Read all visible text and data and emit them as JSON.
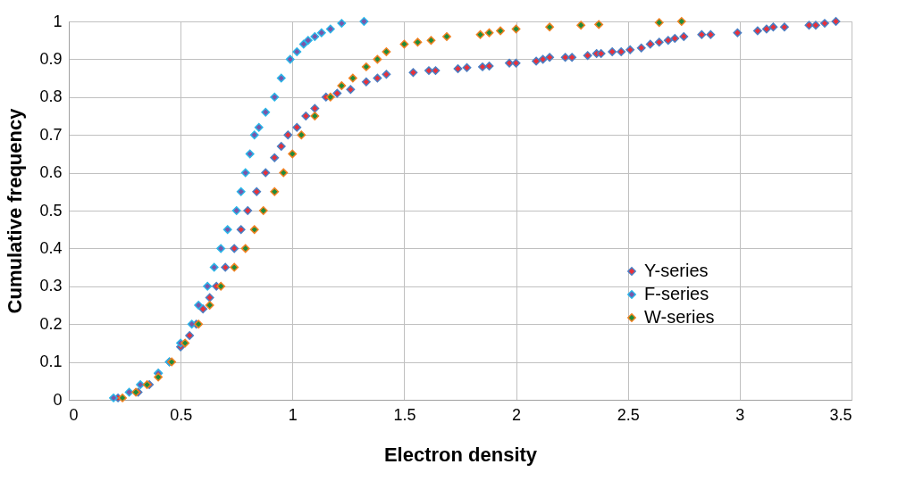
{
  "chart_data": {
    "type": "scatter",
    "xlabel": "Electron density",
    "ylabel": "Cumulative frequency",
    "xlim": [
      0,
      3.5
    ],
    "ylim": [
      0,
      1
    ],
    "xticks": [
      0,
      0.5,
      1,
      1.5,
      2,
      2.5,
      3,
      3.5
    ],
    "yticks": [
      0,
      0.1,
      0.2,
      0.3,
      0.4,
      0.5,
      0.6,
      0.7,
      0.8,
      0.9,
      1
    ],
    "grid": true,
    "marker": "diamond",
    "legend": "right",
    "series": [
      {
        "name": "Y-series",
        "color": "#e8303a",
        "x": [
          0.22,
          0.31,
          0.36,
          0.4,
          0.45,
          0.5,
          0.54,
          0.57,
          0.6,
          0.63,
          0.66,
          0.7,
          0.74,
          0.77,
          0.8,
          0.84,
          0.88,
          0.92,
          0.95,
          0.98,
          1.02,
          1.06,
          1.1,
          1.15,
          1.2,
          1.26,
          1.33,
          1.38,
          1.42,
          1.54,
          1.61,
          1.64,
          1.74,
          1.78,
          1.85,
          1.88,
          1.97,
          2.0,
          2.09,
          2.12,
          2.15,
          2.22,
          2.25,
          2.32,
          2.36,
          2.38,
          2.43,
          2.47,
          2.51,
          2.56,
          2.6,
          2.64,
          2.68,
          2.71,
          2.75,
          2.83,
          2.87,
          2.99,
          3.08,
          3.12,
          3.15,
          3.2,
          3.31,
          3.34,
          3.38,
          3.43
        ],
        "values": [
          0.005,
          0.02,
          0.04,
          0.07,
          0.1,
          0.14,
          0.17,
          0.2,
          0.24,
          0.27,
          0.3,
          0.35,
          0.4,
          0.45,
          0.5,
          0.55,
          0.6,
          0.64,
          0.67,
          0.7,
          0.72,
          0.75,
          0.77,
          0.8,
          0.81,
          0.82,
          0.84,
          0.85,
          0.86,
          0.865,
          0.87,
          0.87,
          0.875,
          0.878,
          0.88,
          0.882,
          0.89,
          0.89,
          0.895,
          0.9,
          0.905,
          0.905,
          0.905,
          0.91,
          0.915,
          0.915,
          0.92,
          0.92,
          0.925,
          0.93,
          0.94,
          0.945,
          0.95,
          0.955,
          0.96,
          0.965,
          0.965,
          0.97,
          0.975,
          0.98,
          0.985,
          0.985,
          0.99,
          0.99,
          0.995,
          1.0
        ]
      },
      {
        "name": "F-series",
        "color": "#7a55a8",
        "x": [
          0.2,
          0.27,
          0.32,
          0.4,
          0.45,
          0.5,
          0.55,
          0.58,
          0.62,
          0.65,
          0.68,
          0.71,
          0.75,
          0.77,
          0.79,
          0.81,
          0.83,
          0.85,
          0.88,
          0.92,
          0.95,
          0.99,
          1.02,
          1.05,
          1.07,
          1.1,
          1.13,
          1.17,
          1.22,
          1.32
        ],
        "values": [
          0.005,
          0.02,
          0.04,
          0.07,
          0.1,
          0.15,
          0.2,
          0.25,
          0.3,
          0.35,
          0.4,
          0.45,
          0.5,
          0.55,
          0.6,
          0.65,
          0.7,
          0.72,
          0.76,
          0.8,
          0.85,
          0.9,
          0.92,
          0.94,
          0.95,
          0.96,
          0.97,
          0.98,
          0.995,
          1.0
        ]
      },
      {
        "name": "W-series",
        "color": "#1e8c3a",
        "x": [
          0.24,
          0.3,
          0.35,
          0.4,
          0.46,
          0.52,
          0.58,
          0.63,
          0.68,
          0.74,
          0.79,
          0.83,
          0.87,
          0.92,
          0.96,
          1.0,
          1.04,
          1.1,
          1.17,
          1.22,
          1.27,
          1.33,
          1.38,
          1.42,
          1.5,
          1.56,
          1.62,
          1.69,
          1.84,
          1.88,
          1.93,
          2.0,
          2.15,
          2.29,
          2.37,
          2.64,
          2.74
        ],
        "values": [
          0.005,
          0.02,
          0.04,
          0.06,
          0.1,
          0.15,
          0.2,
          0.25,
          0.3,
          0.35,
          0.4,
          0.45,
          0.5,
          0.55,
          0.6,
          0.65,
          0.7,
          0.75,
          0.8,
          0.83,
          0.85,
          0.88,
          0.9,
          0.92,
          0.94,
          0.945,
          0.95,
          0.96,
          0.965,
          0.97,
          0.975,
          0.98,
          0.985,
          0.99,
          0.992,
          0.997,
          1.0
        ]
      }
    ]
  }
}
